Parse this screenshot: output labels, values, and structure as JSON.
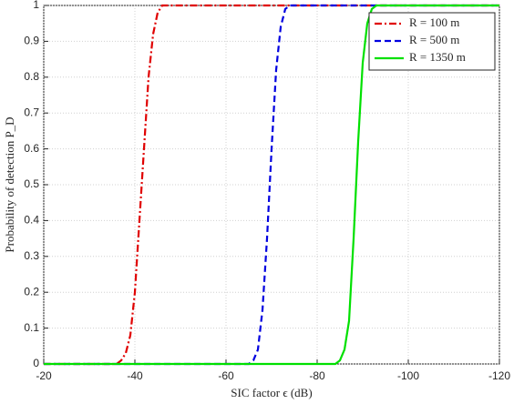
{
  "chart_data": {
    "type": "line",
    "x_label": "SIC factor ϵ (dB)",
    "y_label": "Probability of detection P_D",
    "x": [
      -20,
      -30,
      -36,
      -37,
      -38,
      -39,
      -40,
      -41,
      -42,
      -43,
      -44,
      -45,
      -46,
      -47,
      -50,
      -60,
      -64,
      -65,
      -66,
      -67,
      -68,
      -69,
      -70,
      -71,
      -72,
      -73,
      -74,
      -76,
      -80,
      -84,
      -85,
      -86,
      -87,
      -88,
      -89,
      -90,
      -91,
      -92,
      -93,
      -95,
      -100,
      -110,
      -120
    ],
    "series": [
      {
        "name": "R = 100 m",
        "color": "#e00000",
        "dash": "8,3,2,3",
        "values": [
          0,
          0,
          0,
          0.01,
          0.03,
          0.08,
          0.2,
          0.4,
          0.6,
          0.8,
          0.92,
          0.98,
          1,
          1,
          1,
          1,
          1,
          1,
          1,
          1,
          1,
          1,
          1,
          1,
          1,
          1,
          1,
          1,
          1,
          1,
          1,
          1,
          1,
          1,
          1,
          1,
          1,
          1,
          1,
          1,
          1,
          1,
          1
        ]
      },
      {
        "name": "R = 500 m",
        "color": "#0000e0",
        "dash": "7,4",
        "values": [
          0,
          0,
          0,
          0,
          0,
          0,
          0,
          0,
          0,
          0,
          0,
          0,
          0,
          0,
          0,
          0,
          0,
          0,
          0.01,
          0.04,
          0.15,
          0.35,
          0.6,
          0.82,
          0.94,
          0.99,
          1,
          1,
          1,
          1,
          1,
          1,
          1,
          1,
          1,
          1,
          1,
          1,
          1,
          1,
          1,
          1,
          1
        ]
      },
      {
        "name": "R = 1350 m",
        "color": "#00e000",
        "dash": "none",
        "values": [
          0,
          0,
          0,
          0,
          0,
          0,
          0,
          0,
          0,
          0,
          0,
          0,
          0,
          0,
          0,
          0,
          0,
          0,
          0,
          0,
          0,
          0,
          0,
          0,
          0,
          0,
          0,
          0,
          0,
          0,
          0.01,
          0.04,
          0.12,
          0.35,
          0.62,
          0.84,
          0.95,
          0.99,
          1,
          1,
          1,
          1,
          1
        ]
      }
    ],
    "xlim": [
      -20,
      -120
    ],
    "xticks": [
      -20,
      -40,
      -60,
      -80,
      -100,
      -120
    ],
    "ylim": [
      0,
      1
    ],
    "yticks": [
      0,
      0.1,
      0.2,
      0.3,
      0.4,
      0.5,
      0.6,
      0.7,
      0.8,
      0.9,
      1
    ],
    "grid": true,
    "legend": "top-right"
  }
}
